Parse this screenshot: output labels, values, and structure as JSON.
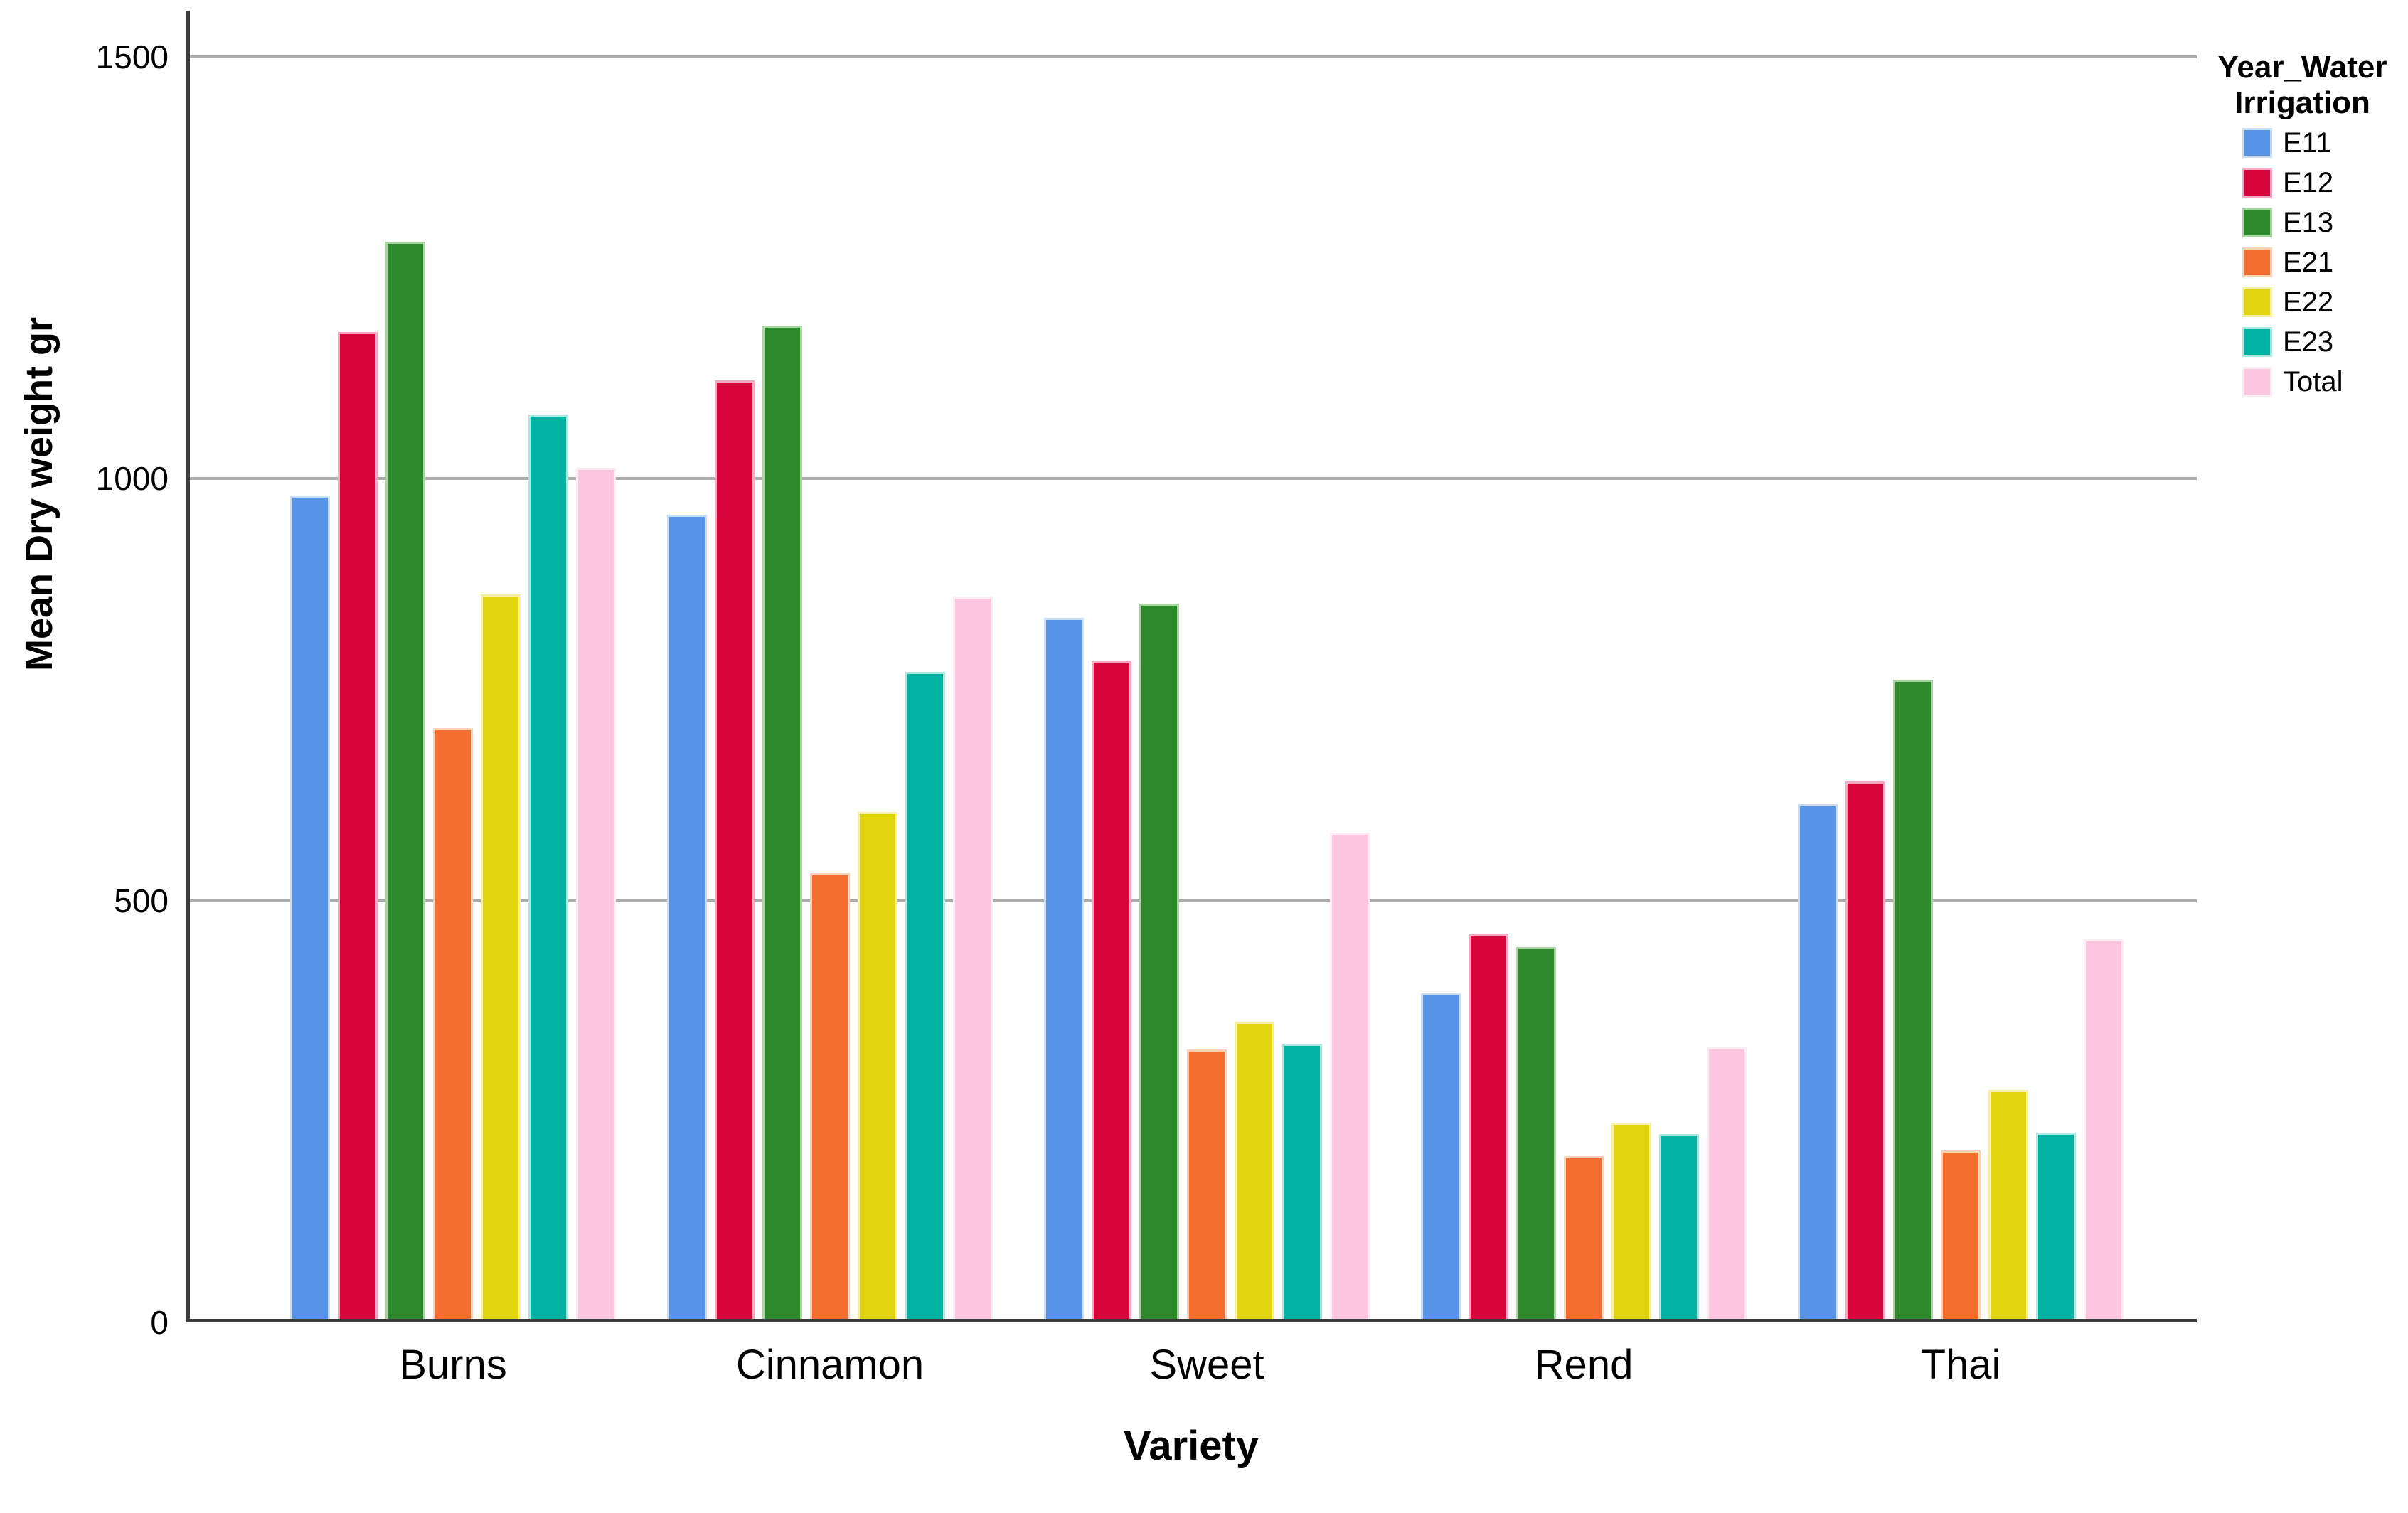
{
  "chart_data": {
    "type": "bar",
    "title": "",
    "xlabel": "Variety",
    "ylabel": "Mean Dry weight gr",
    "ylim": [
      0,
      1500
    ],
    "yticks": [
      0,
      500,
      1000,
      1500
    ],
    "grid": "horizontal gridlines at 500, 1000, 1500",
    "legend_position": "right",
    "categories": [
      "Burns",
      "Cinnamon",
      "Sweet",
      "Rend",
      "Thai"
    ],
    "series": [
      {
        "name": "E11",
        "color": "#5794E7",
        "edge_color": "#C9DCF8",
        "values": [
          976,
          953,
          831,
          386,
          610
        ]
      },
      {
        "name": "E12",
        "color": "#D7053C",
        "edge_color": "#F2A8C0",
        "values": [
          1170,
          1112,
          780,
          457,
          637
        ]
      },
      {
        "name": "E13",
        "color": "#2D8A2B",
        "edge_color": "#ACD2A6",
        "values": [
          1277,
          1177,
          848,
          441,
          758
        ]
      },
      {
        "name": "E21",
        "color": "#F26D2E",
        "edge_color": "#FAD2B8",
        "values": [
          700,
          528,
          319,
          193,
          200
        ]
      },
      {
        "name": "E22",
        "color": "#E2D411",
        "edge_color": "#F5F1A8",
        "values": [
          859,
          601,
          352,
          233,
          271
        ]
      },
      {
        "name": "E23",
        "color": "#00B2A1",
        "edge_color": "#ACE8DF",
        "values": [
          1072,
          767,
          326,
          219,
          221
        ]
      },
      {
        "name": "Total",
        "color": "#FFC6E1",
        "edge_color": "#FFEDF6",
        "values": [
          1009,
          856,
          576,
          322,
          450
        ]
      }
    ]
  },
  "legend": {
    "title_line1": "Year_Water",
    "title_line2": "Irrigation"
  },
  "style_colors": {
    "axis_line": "#3C3C3C",
    "gridline": "#ABABAB",
    "background": "#FFFFFF"
  }
}
